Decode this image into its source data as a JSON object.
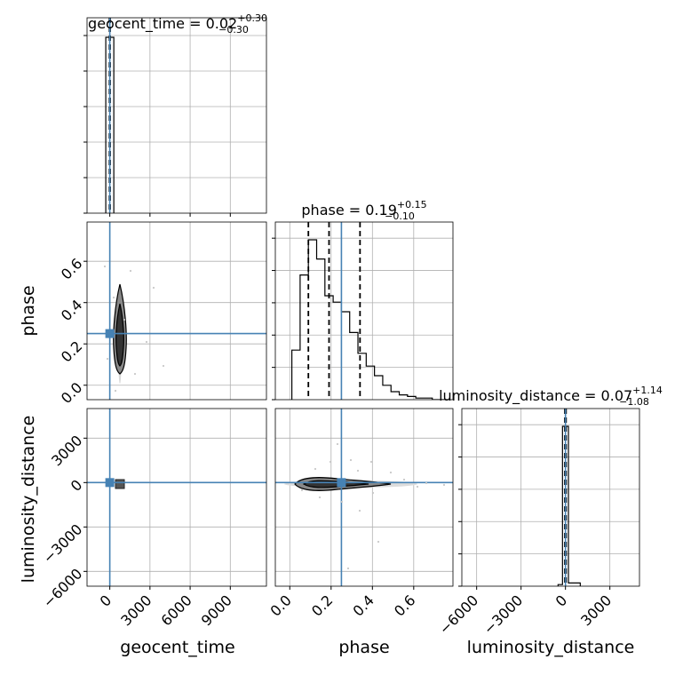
{
  "chart_data": {
    "type": "corner",
    "truth_color": "#4682b4",
    "line_color": "#000000",
    "grid": true,
    "parameters": [
      {
        "name": "geocent_time",
        "title_prefix": "geocent_time = ",
        "median": "0.02",
        "plus": "+0.30",
        "minus": "−0.30",
        "truth": 0,
        "range": [
          -1700,
          11700
        ],
        "ticks": [
          0,
          3000,
          6000,
          9000
        ],
        "tick_labels": [
          "0",
          "3000",
          "6000",
          "9000"
        ],
        "quantiles": [
          -25,
          0,
          25
        ],
        "hist_edges": [
          -300,
          300
        ],
        "hist_counts": [
          1.0
        ]
      },
      {
        "name": "phase",
        "title_prefix": "phase = ",
        "median": "0.19",
        "plus": "+0.15",
        "minus": "−0.10",
        "truth": 0.25,
        "range": [
          -0.07,
          0.79
        ],
        "ticks": [
          0.0,
          0.2,
          0.4,
          0.6
        ],
        "tick_labels": [
          "0.0",
          "0.2",
          "0.4",
          "0.6"
        ],
        "quantiles": [
          0.09,
          0.19,
          0.34
        ],
        "hist_edges": [
          0.01,
          0.05,
          0.09,
          0.13,
          0.17,
          0.21,
          0.25,
          0.29,
          0.33,
          0.37,
          0.41,
          0.45,
          0.49,
          0.53,
          0.57,
          0.61,
          0.65,
          0.69,
          0.73,
          0.77
        ],
        "hist_counts": [
          0.31,
          0.78,
          1.0,
          0.88,
          0.65,
          0.61,
          0.55,
          0.42,
          0.29,
          0.21,
          0.15,
          0.09,
          0.05,
          0.03,
          0.02,
          0.01,
          0.01,
          0.0,
          0.0
        ]
      },
      {
        "name": "luminosity_distance",
        "title_prefix": "luminosity_distance = ",
        "median": "0.07",
        "plus": "+1.14",
        "minus": "−1.08",
        "truth": 0,
        "range": [
          -7000,
          5000
        ],
        "ticks": [
          -6000,
          -3000,
          0,
          3000
        ],
        "tick_labels": [
          "−6000",
          "−3000",
          "0",
          "3000"
        ],
        "quantiles": [
          -40,
          0,
          40
        ],
        "hist_edges": [
          -500,
          -200,
          200,
          1000
        ],
        "hist_counts": [
          0.01,
          1.0,
          0.02
        ]
      }
    ]
  }
}
